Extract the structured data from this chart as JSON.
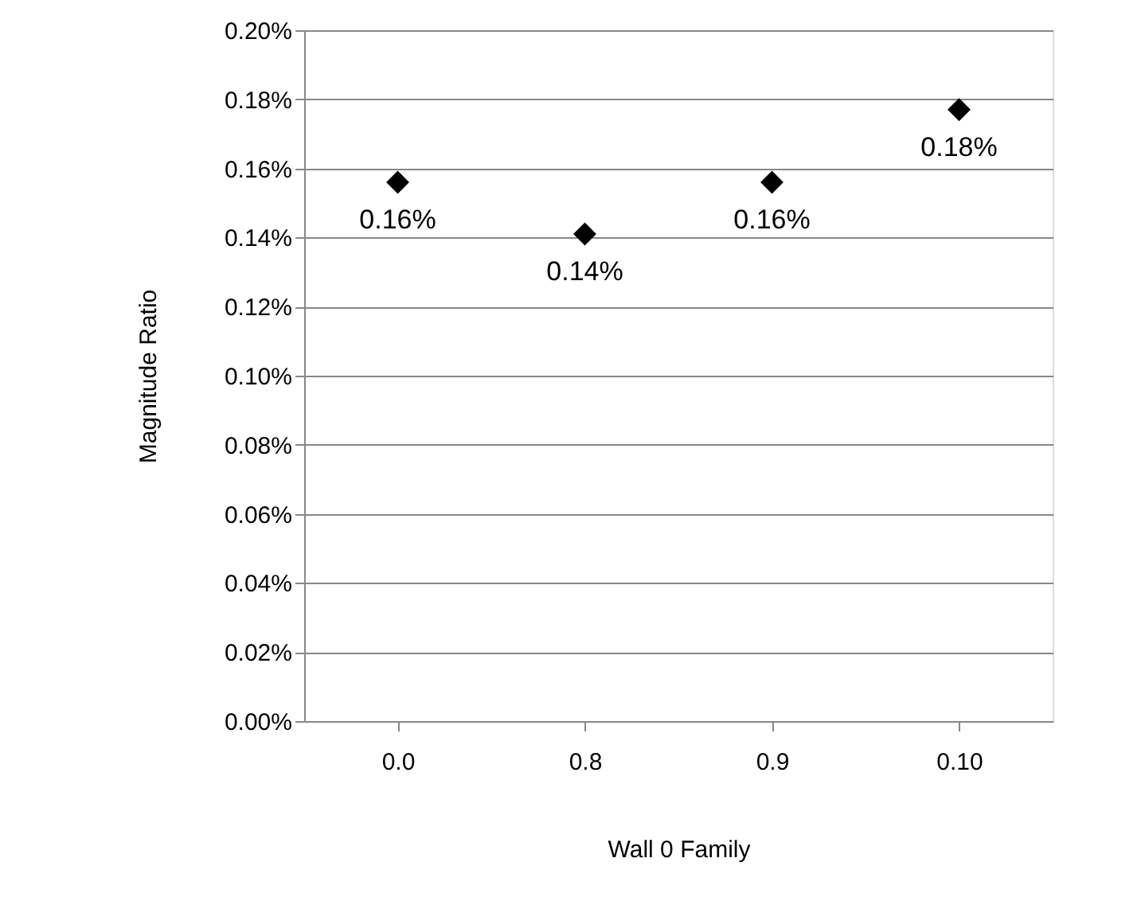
{
  "chart_data": {
    "type": "scatter",
    "xlabel": "Wall 0 Family",
    "ylabel": "Magnitude Ratio",
    "categories": [
      "0.0",
      "0.8",
      "0.9",
      "0.10"
    ],
    "series": [
      {
        "color": "#000000",
        "values": [
          0.156,
          0.141,
          0.156,
          0.177
        ],
        "value_labels": [
          "0.16%",
          "0.14%",
          "0.16%",
          "0.18%"
        ]
      }
    ],
    "marker": "diamond",
    "grid": "y",
    "ylim": [
      0,
      0.2
    ],
    "yticks": [
      {
        "value": 0,
        "label": "0.00%"
      },
      {
        "value": 0.02,
        "label": "0.02%"
      },
      {
        "value": 0.04,
        "label": "0.04%"
      },
      {
        "value": 0.06,
        "label": "0.06%"
      },
      {
        "value": 0.08,
        "label": "0.08%"
      },
      {
        "value": 0.1,
        "label": "0.10%"
      },
      {
        "value": 0.12,
        "label": "0.12%"
      },
      {
        "value": 0.14,
        "label": "0.14%"
      },
      {
        "value": 0.16,
        "label": "0.16%"
      },
      {
        "value": 0.18,
        "label": "0.18%"
      },
      {
        "value": 0.2,
        "label": "0.20%"
      }
    ]
  }
}
